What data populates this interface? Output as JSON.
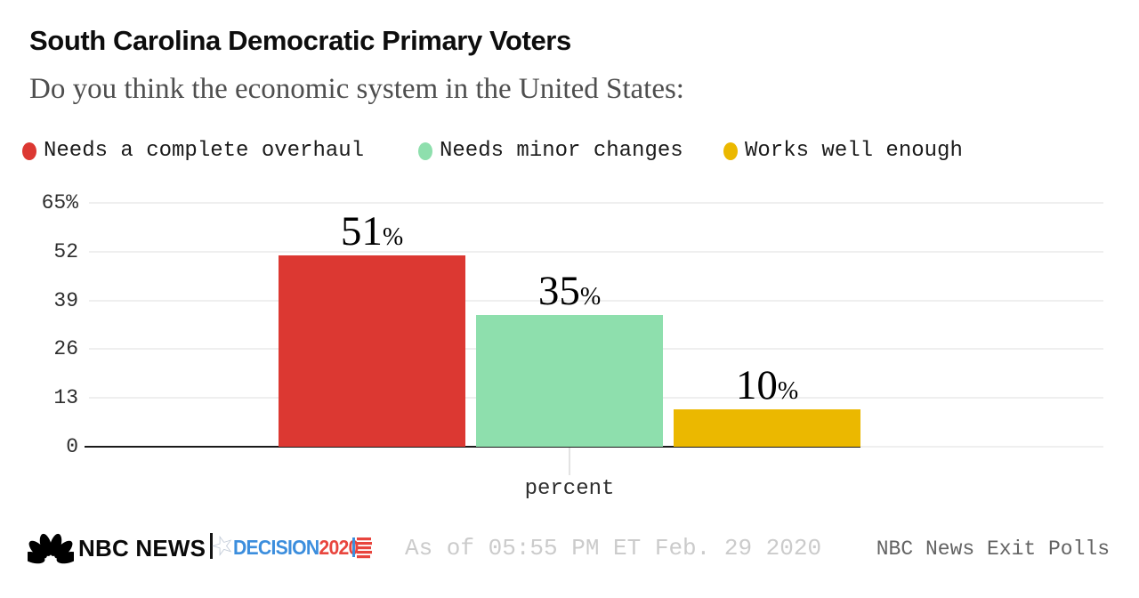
{
  "header": {
    "title": "South Carolina Democratic Primary Voters",
    "subtitle": "Do you think the economic system in the United States:"
  },
  "legend": [
    {
      "label": "Needs a complete overhaul",
      "color": "#DC3832"
    },
    {
      "label": "Needs minor changes",
      "color": "#8EDFAD"
    },
    {
      "label": "Works well enough",
      "color": "#EBB800"
    }
  ],
  "chart_data": {
    "type": "bar",
    "categories": [
      "Needs a complete overhaul",
      "Needs minor changes",
      "Works well enough"
    ],
    "values": [
      51,
      35,
      10
    ],
    "colors": [
      "#DC3832",
      "#8EDFAD",
      "#EBB800"
    ],
    "value_suffix": "%",
    "yticks": [
      {
        "value": 65,
        "label": "65%"
      },
      {
        "value": 52,
        "label": "52"
      },
      {
        "value": 39,
        "label": "39"
      },
      {
        "value": 26,
        "label": "26"
      },
      {
        "value": 13,
        "label": "13"
      },
      {
        "value": 0,
        "label": "0"
      }
    ],
    "ylim": [
      0,
      65
    ],
    "xlabel": "percent",
    "grid": true,
    "legend_position": "top"
  },
  "footer": {
    "brand": "NBC NEWS",
    "decision_word": "DECISION",
    "decision_year": "2020",
    "decision_blue": "#3C8EDD",
    "decision_red": "#E8453E",
    "as_of": "As of 05:55 PM ET Feb. 29 2020",
    "source": "NBC News Exit Polls"
  }
}
